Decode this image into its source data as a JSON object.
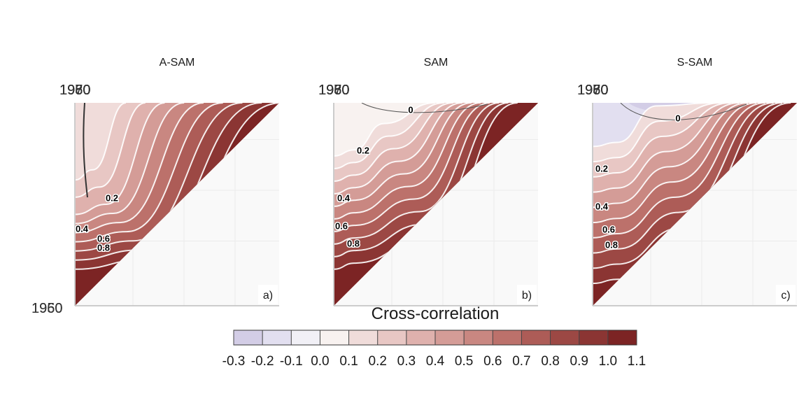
{
  "chart_data": {
    "type": "heatmap",
    "panels": [
      {
        "title": "A-SAM",
        "tag": "a)",
        "corner_top": [
          "1950",
          "1960",
          "1970",
          "1980"
        ],
        "corner_bottom": [
          "1950",
          "1960"
        ],
        "contour_labels": [
          "0.2",
          "0.4",
          "0.6",
          "0.8"
        ]
      },
      {
        "title": "SAM",
        "tag": "b)",
        "corner_top": [
          "1950",
          "1960",
          "1970",
          "1980"
        ],
        "corner_bottom": [],
        "contour_labels": [
          "0",
          "0.2",
          "0.4",
          "0.6",
          "0.8"
        ]
      },
      {
        "title": "S-SAM",
        "tag": "c)",
        "corner_top": [
          "1950",
          "1960",
          "1970",
          "1980"
        ],
        "corner_bottom": [],
        "contour_labels": [
          "0",
          "0.2",
          "0.4",
          "0.6",
          "0.8"
        ]
      }
    ],
    "colorbar": {
      "title": "Cross-correlation",
      "ticks": [
        "-0.3",
        "-0.2",
        "-0.1",
        "0.0",
        "0.1",
        "0.2",
        "0.3",
        "0.4",
        "0.5",
        "0.6",
        "0.7",
        "0.8",
        "0.9",
        "1.0",
        "1.1"
      ],
      "colors": [
        "#d3cde6",
        "#e2dff0",
        "#f1f0f6",
        "#f8f2f0",
        "#f0dcda",
        "#e8c7c4",
        "#dfb1ad",
        "#d49c97",
        "#c98781",
        "#bc716b",
        "#ad5c57",
        "#9c4844",
        "#8b3533",
        "#7c2424"
      ]
    }
  }
}
